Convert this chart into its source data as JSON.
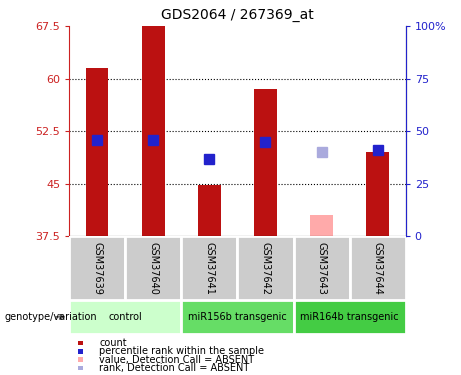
{
  "title": "GDS2064 / 267369_at",
  "samples": [
    "GSM37639",
    "GSM37640",
    "GSM37641",
    "GSM37642",
    "GSM37643",
    "GSM37644"
  ],
  "bar_values": [
    61.5,
    67.5,
    44.8,
    58.5,
    null,
    49.5
  ],
  "bar_bottom": [
    37.5,
    37.5,
    37.5,
    37.5,
    null,
    37.5
  ],
  "bar_color": "#bb1111",
  "absent_bar_values": [
    null,
    null,
    null,
    null,
    40.5,
    null
  ],
  "absent_bar_bottom": [
    null,
    null,
    null,
    null,
    37.5,
    null
  ],
  "absent_bar_color": "#ffaaaa",
  "rank_markers": [
    51.2,
    51.3,
    48.5,
    51.0,
    null,
    49.8
  ],
  "rank_marker_color": "#2222cc",
  "absent_rank_markers": [
    null,
    null,
    null,
    null,
    49.5,
    null
  ],
  "absent_rank_color": "#aaaadd",
  "ylim": [
    37.5,
    67.5
  ],
  "yticks_left": [
    37.5,
    45.0,
    52.5,
    60.0,
    67.5
  ],
  "yticks_right": [
    0,
    25,
    50,
    75,
    100
  ],
  "ytick_labels_left": [
    "37.5",
    "45",
    "52.5",
    "60",
    "67.5"
  ],
  "ytick_labels_right": [
    "0",
    "25",
    "50",
    "75",
    "100%"
  ],
  "left_tick_color": "#cc2222",
  "right_tick_color": "#2222cc",
  "grid_yticks": [
    45.0,
    52.5,
    60.0
  ],
  "groups": [
    {
      "label": "control",
      "cols": [
        0,
        1
      ],
      "color": "#ccffcc"
    },
    {
      "label": "miR156b transgenic",
      "cols": [
        2,
        3
      ],
      "color": "#66dd66"
    },
    {
      "label": "miR164b transgenic",
      "cols": [
        4,
        5
      ],
      "color": "#44cc44"
    }
  ],
  "group_label_prefix": "genotype/variation",
  "legend_items": [
    {
      "label": "count",
      "color": "#bb1111"
    },
    {
      "label": "percentile rank within the sample",
      "color": "#2222cc"
    },
    {
      "label": "value, Detection Call = ABSENT",
      "color": "#ffaaaa"
    },
    {
      "label": "rank, Detection Call = ABSENT",
      "color": "#aaaadd"
    }
  ],
  "bar_width": 0.4,
  "marker_size": 7,
  "plot_bg_color": "#ffffff",
  "sample_box_color": "#cccccc",
  "figsize": [
    4.61,
    3.75
  ],
  "dpi": 100
}
